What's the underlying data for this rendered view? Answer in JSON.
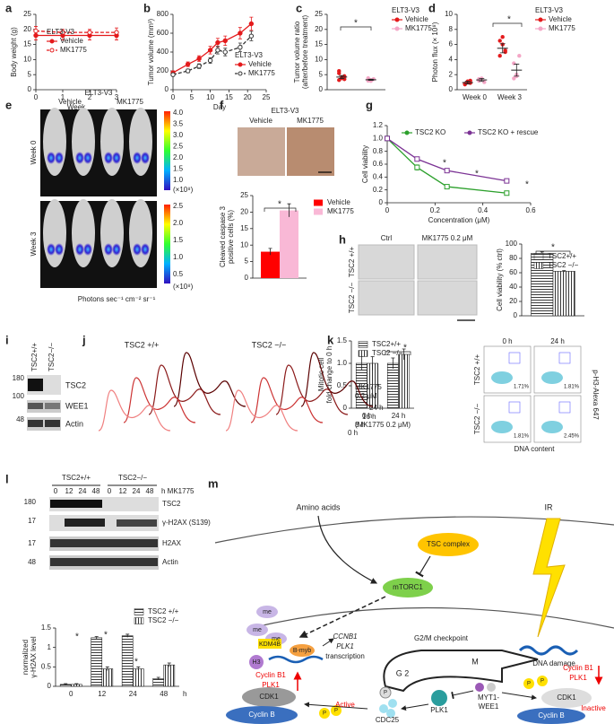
{
  "panel_letters": [
    "a",
    "b",
    "c",
    "d",
    "e",
    "f",
    "g",
    "h",
    "i",
    "j",
    "k",
    "l",
    "m"
  ],
  "chart_data": [
    {
      "type": "line",
      "x_label": "Week",
      "y_label": [
        "Body weight (g)"
      ],
      "legend_title": "ELT3-V3",
      "x": [
        0,
        1,
        2,
        3
      ],
      "xlim": [
        0,
        3
      ],
      "xticks": [
        0,
        1,
        2,
        3
      ],
      "ylim": [
        0,
        25
      ],
      "yticks": [
        0,
        5,
        10,
        15,
        20,
        25
      ],
      "series": [
        {
          "name": "Vehicle",
          "color": "#e41a1c",
          "dash": false,
          "values": [
            18,
            18,
            18,
            18
          ],
          "errors": [
            1.5,
            1.5,
            1.5,
            1.5
          ]
        },
        {
          "name": "MK1775",
          "color": "#e41a1c",
          "dash": true,
          "values": [
            19.5,
            19,
            19,
            19
          ],
          "errors": [
            1.5,
            1,
            1,
            1.5
          ]
        }
      ]
    },
    {
      "type": "line",
      "x_label": "Day",
      "y_label": [
        "Tumor volume (mm³)"
      ],
      "legend_title": "ELT3-V3",
      "x": [
        0,
        4,
        7,
        10,
        12,
        14,
        18,
        21
      ],
      "xlim": [
        0,
        25
      ],
      "xticks": [
        0,
        5,
        10,
        15,
        20,
        25
      ],
      "ylim": [
        0,
        800
      ],
      "yticks": [
        0,
        200,
        400,
        600,
        800
      ],
      "series": [
        {
          "name": "Vehicle",
          "color": "#e41a1c",
          "dash": false,
          "values": [
            180,
            270,
            330,
            420,
            500,
            520,
            600,
            700
          ],
          "errors": [
            20,
            25,
            30,
            40,
            45,
            50,
            60,
            70
          ]
        },
        {
          "name": "MK1775",
          "color": "#333333",
          "dash": true,
          "values": [
            160,
            200,
            250,
            310,
            420,
            400,
            450,
            570
          ],
          "errors": [
            15,
            20,
            25,
            30,
            40,
            40,
            45,
            50
          ]
        }
      ]
    },
    {
      "type": "dot",
      "y_label": [
        "Tumor volume ratio",
        "(after/before treatment)"
      ],
      "legend_title": "ELT3-V3",
      "ylim": [
        0,
        25
      ],
      "yticks": [
        0,
        5,
        10,
        15,
        20,
        25
      ],
      "annotations": [
        "*"
      ],
      "series": [
        {
          "name": "Vehicle",
          "color": "#e41a1c",
          "values": [
            3.2,
            3.8,
            4.5,
            5.5,
            4.0,
            3.5,
            6.2
          ],
          "mean": 4.2,
          "errors": 0.5
        },
        {
          "name": "MK1775",
          "color": "#f4a6c6",
          "values": [
            3.0,
            3.2,
            3.5,
            3.8,
            2.9
          ],
          "mean": 3.3,
          "errors": 0.2
        }
      ]
    },
    {
      "type": "dot",
      "y_label": [
        "Photon flux (× 10⁸)"
      ],
      "legend_title": "ELT3-V3",
      "categories": [
        "Week 0",
        "Week 3"
      ],
      "ylim": [
        0,
        10
      ],
      "yticks": [
        0,
        2,
        4,
        6,
        8,
        10
      ],
      "annotations": [
        "*"
      ],
      "series": [
        {
          "name": "Vehicle",
          "color": "#e41a1c",
          "values": [
            [
              0.8,
              1.0,
              1.2,
              0.7,
              1.1,
              0.9
            ],
            [
              4.5,
              6,
              5.2,
              6.5,
              7,
              5
            ]
          ],
          "mean": [
            0.95,
            5.5
          ],
          "errors": [
            0.2,
            0.6
          ]
        },
        {
          "name": "MK1775",
          "color": "#f4a6c6",
          "values": [
            [
              1.2,
              1.5,
              1.0,
              1.4
            ],
            [
              1.5,
              2,
              4.5,
              3.5,
              1.8
            ]
          ],
          "mean": [
            1.3,
            2.6
          ],
          "errors": [
            0.2,
            0.8
          ]
        }
      ]
    },
    {
      "type": "bar",
      "y_label": [
        "Cleaved caspase 3",
        "positive cells (%)"
      ],
      "categories": [
        null
      ],
      "ylim": [
        0,
        25
      ],
      "yticks": [
        0,
        5,
        10,
        15,
        20,
        25
      ],
      "annotations": [
        "*"
      ],
      "series": [
        {
          "name": "Vehicle",
          "color": "#ff0000",
          "values": [
            8
          ],
          "errors": [
            1
          ]
        },
        {
          "name": "MK1775",
          "color": "#f9b8d6",
          "values": [
            20.5
          ],
          "errors": [
            2
          ]
        }
      ]
    },
    {
      "type": "line",
      "x_label": "Concentration (μM)",
      "y_label": [
        "Cell viability"
      ],
      "x": [
        0,
        0.125,
        0.25,
        0.5
      ],
      "xlim": [
        0,
        0.6
      ],
      "xticks": [
        0,
        0.2,
        0.4,
        0.6
      ],
      "ylim": [
        0,
        1.2
      ],
      "yticks": [
        0,
        0.2,
        0.4,
        0.6,
        0.8,
        {
          "value": 1,
          "label": "1.0"
        },
        1.2
      ],
      "annotations": [
        "*",
        "*",
        "*"
      ],
      "series": [
        {
          "name": "TSC2 KO",
          "color": "#2ca02c",
          "marker": "square",
          "values": [
            1,
            0.55,
            0.25,
            0.15
          ],
          "errors": [
            0.02,
            0.04,
            0.02,
            0.02
          ]
        },
        {
          "name": "TSC2 KO + rescue",
          "color": "#7b3294",
          "marker": "square",
          "values": [
            1,
            0.68,
            0.5,
            0.34
          ],
          "errors": [
            0.02,
            0.03,
            0.02,
            0.03
          ]
        }
      ]
    },
    {
      "type": "bar",
      "y_label": [
        "Cell viability (% ctrl)"
      ],
      "categories": [
        null
      ],
      "ylim": [
        0,
        100
      ],
      "yticks": [
        0,
        20,
        40,
        60,
        80,
        100
      ],
      "annotations": [
        "*"
      ],
      "series": [
        {
          "name": "TSC2+/+",
          "color": "#222222",
          "pattern": "horizontal",
          "values": [
            87
          ],
          "errors": [
            2
          ]
        },
        {
          "name": "TSC2 −/−",
          "color": "#222222",
          "pattern": "vertical",
          "values": [
            62
          ],
          "errors": [
            1
          ]
        }
      ]
    },
    {
      "type": "bar",
      "y_label": [
        "Mitotic cell",
        "fold change to 0 h"
      ],
      "subtitle": "(MK1775 0.2 μM)",
      "categories": [
        "0 h",
        "24 h"
      ],
      "ylim": [
        0,
        1.5
      ],
      "yticks": [
        0,
        0.5,
        {
          "value": 1,
          "label": "1.0"
        },
        1.5
      ],
      "annotations": [
        "*"
      ],
      "series": [
        {
          "name": "TSC2+/+",
          "color": "#222222",
          "pattern": "horizontal",
          "values": [
            1.0,
            1.0
          ],
          "errors": [
            0.15,
            0.12
          ]
        },
        {
          "name": "TSC2 −/−",
          "color": "#222222",
          "pattern": "vertical",
          "values": [
            1.0,
            1.2
          ],
          "errors": [
            0.15,
            0.12
          ]
        }
      ]
    },
    {
      "type": "bar",
      "y_label": [
        "normalized",
        "γ-H2AX level"
      ],
      "x_label": "h",
      "categories": [
        "0",
        "12",
        "24",
        "48"
      ],
      "ylim": [
        0,
        1.5
      ],
      "yticks": [
        0,
        0.5,
        1,
        1.5
      ],
      "annotations": [
        "*",
        "*",
        "*"
      ],
      "series": [
        {
          "name": "TSC2 +/+",
          "color": "#222222",
          "pattern": "horizontal",
          "values": [
            0.05,
            1.25,
            1.3,
            0.2
          ],
          "errors": [
            0.02,
            0.03,
            0.04,
            0.03
          ]
        },
        {
          "name": "TSC2 −/−",
          "color": "#222222",
          "pattern": "vertical",
          "values": [
            0.05,
            0.45,
            0.45,
            0.55
          ],
          "errors": [
            0.02,
            0.05,
            0.05,
            0.05
          ]
        }
      ]
    }
  ],
  "e": {
    "title": "ELT3-V3",
    "columns": [
      "Vehicle",
      "MK1775"
    ],
    "rows": [
      "Week 0",
      "Week 3"
    ],
    "scale_top": [
      "4.0",
      "3.5",
      "3.0",
      "2.5",
      "2.0",
      "1.5",
      "1.0"
    ],
    "scale_bottom": [
      "2.5",
      "2.0",
      "1.5",
      "1.0",
      "0.5"
    ],
    "unit": "(×10⁸)",
    "axis_label": "Photons sec⁻¹ cm⁻² sr⁻¹"
  },
  "f": {
    "title": "ELT3-V3",
    "columns": [
      "Vehicle",
      "MK1775"
    ]
  },
  "h": {
    "columns": [
      "Ctrl",
      "MK1775 0.2 μM"
    ],
    "rows": [
      "TSC2 +/+",
      "TSC2 −/−"
    ]
  },
  "i": {
    "columns": [
      "TSC2+/+",
      "TSC2−/−"
    ],
    "markers": [
      "180",
      "100",
      "48"
    ],
    "bands": [
      "TSC2",
      "WEE1",
      "Actin"
    ]
  },
  "j": {
    "groups": [
      "TSC2 +/+",
      "TSC2 −/−"
    ],
    "treatment": [
      "MK1775",
      "0.2 μM"
    ],
    "times": [
      "24 h",
      "16 h",
      "8 h",
      "0 h"
    ]
  },
  "k_flow": {
    "columns": [
      "0 h",
      "24 h"
    ],
    "rows": [
      "TSC2 +/+",
      "TSC2 −/−"
    ],
    "percents": [
      "1.71%",
      "1.81%",
      "1.81%",
      "2.45%"
    ],
    "x_label": "DNA content",
    "y_label": "p-H3-Alexa 647"
  },
  "l_blot": {
    "groups": [
      "TSC2+/+",
      "TSC2−/−"
    ],
    "lanes": [
      "0",
      "12",
      "24",
      "48",
      "0",
      "12",
      "24",
      "48"
    ],
    "unit": "h MK1775",
    "markers": [
      "180",
      "17",
      "17",
      "48"
    ],
    "bands": [
      "TSC2",
      "γ-H2AX (S139)",
      "H2AX",
      "Actin"
    ]
  },
  "m": {
    "labels": [
      "Amino acids",
      "IR",
      "TSC complex",
      "mTORC1",
      "DNA damage",
      "me",
      "me",
      "me",
      "KDM4B",
      "B-myb",
      "H3",
      "CCNB1",
      "PLK1",
      "transcription",
      "G2/M checkpoint",
      "G 2",
      "M",
      "Cyclin B1",
      "PLK1",
      "Cyclin B1",
      "PLK1",
      "CDK1",
      "Cyclin B",
      "Active",
      "P",
      "P",
      "P",
      "CDC25",
      "PLK1",
      "MYT1-",
      "WEE1",
      "P",
      "P",
      "CDK1",
      "Cyclin B",
      "Inactive"
    ]
  }
}
